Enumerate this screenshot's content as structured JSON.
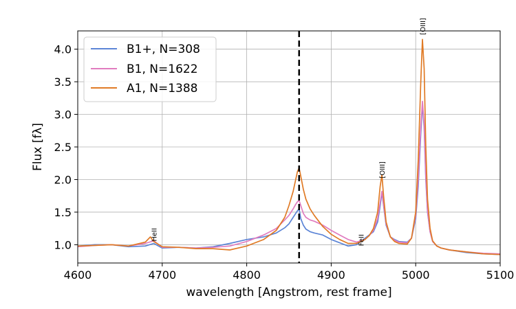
{
  "chart_data": {
    "type": "line",
    "xlabel": "wavelength [Angstrom, rest frame]",
    "ylabel": "Flux [fλ]",
    "xlim": [
      4600,
      5100
    ],
    "ylim": [
      0.72,
      4.28
    ],
    "x_ticks": [
      "4600",
      "4700",
      "4800",
      "4900",
      "5000",
      "5100"
    ],
    "y_ticks": [
      "1.0",
      "1.5",
      "2.0",
      "2.5",
      "3.0",
      "3.5",
      "4.0"
    ],
    "grid": true,
    "legend_position": "top-left",
    "vline": 4862,
    "series": [
      {
        "name": "B1+, N=308",
        "color": "#5b84d6",
        "x": [
          4600,
          4620,
          4640,
          4660,
          4680,
          4690,
          4700,
          4720,
          4740,
          4760,
          4780,
          4800,
          4820,
          4835,
          4845,
          4850,
          4855,
          4858,
          4860,
          4862,
          4864,
          4867,
          4870,
          4875,
          4880,
          4890,
          4900,
          4910,
          4920,
          4930,
          4940,
          4945,
          4950,
          4955,
          4958,
          4960,
          4962,
          4965,
          4970,
          4975,
          4980,
          4990,
          4995,
          5000,
          5003,
          5006,
          5008,
          5010,
          5012,
          5014,
          5017,
          5020,
          5025,
          5030,
          5040,
          5060,
          5080,
          5100
        ],
        "y": [
          0.98,
          1.0,
          1.0,
          0.97,
          0.98,
          1.02,
          0.95,
          0.96,
          0.95,
          0.97,
          1.02,
          1.08,
          1.12,
          1.18,
          1.26,
          1.32,
          1.42,
          1.48,
          1.52,
          1.55,
          1.4,
          1.3,
          1.24,
          1.2,
          1.18,
          1.15,
          1.08,
          1.03,
          0.98,
          1.0,
          1.1,
          1.15,
          1.2,
          1.35,
          1.6,
          1.8,
          1.6,
          1.3,
          1.12,
          1.08,
          1.05,
          1.04,
          1.1,
          1.4,
          1.9,
          2.7,
          3.15,
          2.8,
          2.0,
          1.5,
          1.2,
          1.05,
          0.98,
          0.95,
          0.92,
          0.88,
          0.86,
          0.85
        ]
      },
      {
        "name": "B1, N=1622",
        "color": "#e07bbf",
        "x": [
          4600,
          4620,
          4640,
          4660,
          4680,
          4690,
          4700,
          4720,
          4740,
          4760,
          4780,
          4800,
          4820,
          4835,
          4845,
          4850,
          4855,
          4858,
          4860,
          4862,
          4864,
          4867,
          4870,
          4875,
          4880,
          4890,
          4900,
          4910,
          4920,
          4930,
          4940,
          4945,
          4950,
          4955,
          4958,
          4960,
          4962,
          4965,
          4970,
          4975,
          4980,
          4990,
          4995,
          5000,
          5003,
          5006,
          5008,
          5010,
          5012,
          5014,
          5017,
          5020,
          5025,
          5030,
          5040,
          5060,
          5080,
          5100
        ],
        "y": [
          0.97,
          0.99,
          1.0,
          0.98,
          1.02,
          1.06,
          0.96,
          0.96,
          0.95,
          0.96,
          0.98,
          1.05,
          1.15,
          1.25,
          1.38,
          1.45,
          1.55,
          1.62,
          1.66,
          1.68,
          1.6,
          1.48,
          1.42,
          1.38,
          1.36,
          1.3,
          1.22,
          1.15,
          1.08,
          1.04,
          1.08,
          1.14,
          1.22,
          1.4,
          1.65,
          1.82,
          1.62,
          1.32,
          1.12,
          1.07,
          1.04,
          1.03,
          1.1,
          1.45,
          2.0,
          2.8,
          3.2,
          2.85,
          2.05,
          1.52,
          1.2,
          1.05,
          0.98,
          0.95,
          0.92,
          0.89,
          0.87,
          0.86
        ]
      },
      {
        "name": "A1, N=1388",
        "color": "#e07a25",
        "x": [
          4600,
          4620,
          4640,
          4660,
          4680,
          4686,
          4690,
          4700,
          4720,
          4740,
          4760,
          4780,
          4800,
          4820,
          4835,
          4845,
          4850,
          4855,
          4858,
          4860,
          4862,
          4864,
          4867,
          4870,
          4875,
          4880,
          4890,
          4900,
          4910,
          4920,
          4930,
          4940,
          4945,
          4950,
          4955,
          4958,
          4960,
          4962,
          4965,
          4970,
          4975,
          4980,
          4990,
          4995,
          5000,
          5003,
          5006,
          5008,
          5010,
          5012,
          5014,
          5017,
          5020,
          5025,
          5030,
          5040,
          5060,
          5080,
          5100
        ],
        "y": [
          0.98,
          0.99,
          1.0,
          0.98,
          1.04,
          1.12,
          1.05,
          0.97,
          0.96,
          0.94,
          0.94,
          0.92,
          0.98,
          1.08,
          1.22,
          1.42,
          1.6,
          1.82,
          2.0,
          2.12,
          2.18,
          2.05,
          1.85,
          1.7,
          1.55,
          1.45,
          1.28,
          1.16,
          1.08,
          1.02,
          1.02,
          1.08,
          1.14,
          1.25,
          1.5,
          1.9,
          2.07,
          1.75,
          1.35,
          1.12,
          1.05,
          1.02,
          1.01,
          1.1,
          1.5,
          2.3,
          3.5,
          4.15,
          3.7,
          2.5,
          1.7,
          1.25,
          1.06,
          0.98,
          0.95,
          0.92,
          0.89,
          0.86,
          0.85
        ]
      }
    ],
    "annotations": [
      {
        "text": "HeII",
        "x": 4690,
        "y": 1.05
      },
      {
        "text": "FeII",
        "x": 4935,
        "y": 0.98
      },
      {
        "text": "[OIII]",
        "x": 4960,
        "y": 2.02
      },
      {
        "text": "[OIII]",
        "x": 5008,
        "y": 4.22
      }
    ]
  }
}
